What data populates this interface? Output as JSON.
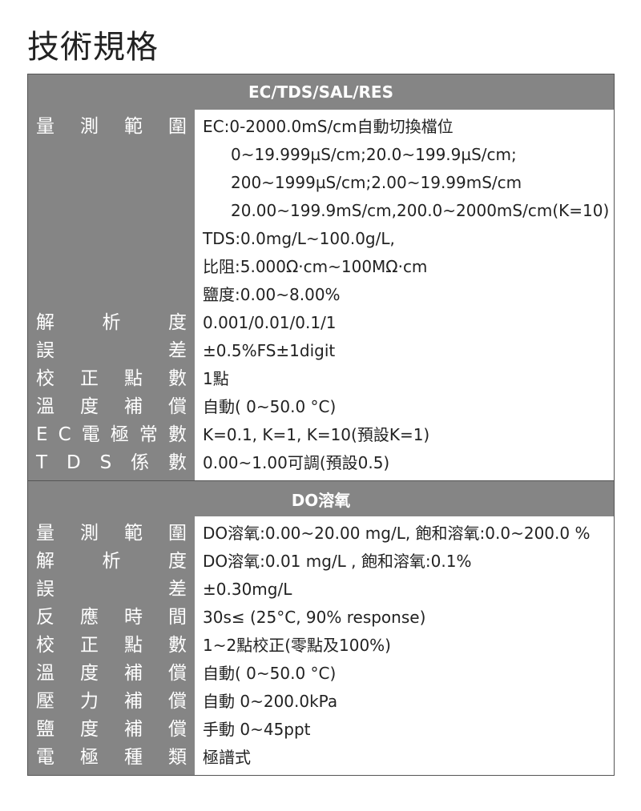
{
  "title": "技術規格",
  "sections": [
    {
      "header": "EC/TDS/SAL/RES",
      "rows": [
        {
          "label": "量測範圍",
          "lines": [
            "EC:0-2000.0mS/cm自動切換檔位",
            "0~19.999µS/cm;20.0~199.9µS/cm;",
            "200~1999µS/cm;2.00~19.99mS/cm",
            "20.00~199.9mS/cm,200.0~2000mS/cm(K=10)",
            "TDS:0.0mg/L~100.0g/L,",
            "比阻:5.000Ω·cm~100MΩ·cm",
            "鹽度:0.00~8.00%"
          ]
        },
        {
          "label": "解析度",
          "lines": [
            "0.001/0.01/0.1/1"
          ]
        },
        {
          "label": "誤差",
          "lines": [
            "±0.5%FS±1digit"
          ]
        },
        {
          "label": "校正點數",
          "lines": [
            "1點"
          ]
        },
        {
          "label": "溫度補償",
          "lines": [
            "自動( 0~50.0 °C)"
          ]
        },
        {
          "label": "EC電極常數",
          "lines": [
            "K=0.1, K=1, K=10(預設K=1)"
          ]
        },
        {
          "label": "TDS係數",
          "lines": [
            "0.00~1.00可調(預設0.5)"
          ]
        }
      ]
    },
    {
      "header": "DO溶氧",
      "rows": [
        {
          "label": "量測範圍",
          "lines": [
            "DO溶氧:0.00~20.00 mg/L, 飽和溶氧:0.0~200.0 %"
          ]
        },
        {
          "label": "解析度",
          "lines": [
            "DO溶氧:0.01 mg/L , 飽和溶氧:0.1%"
          ]
        },
        {
          "label": "誤差",
          "lines": [
            "±0.30mg/L"
          ]
        },
        {
          "label": "反應時間",
          "lines": [
            "30s≤ (25°C, 90% response)"
          ]
        },
        {
          "label": "校正點數",
          "lines": [
            "1~2點校正(零點及100%)"
          ]
        },
        {
          "label": "溫度補償",
          "lines": [
            "自動( 0~50.0 °C)"
          ]
        },
        {
          "label": "壓力補償",
          "lines": [
            "自動 0~200.0kPa"
          ]
        },
        {
          "label": "鹽度補償",
          "lines": [
            "手動 0~45ppt"
          ]
        },
        {
          "label": "電極種類",
          "lines": [
            "極譜式"
          ]
        }
      ]
    }
  ]
}
